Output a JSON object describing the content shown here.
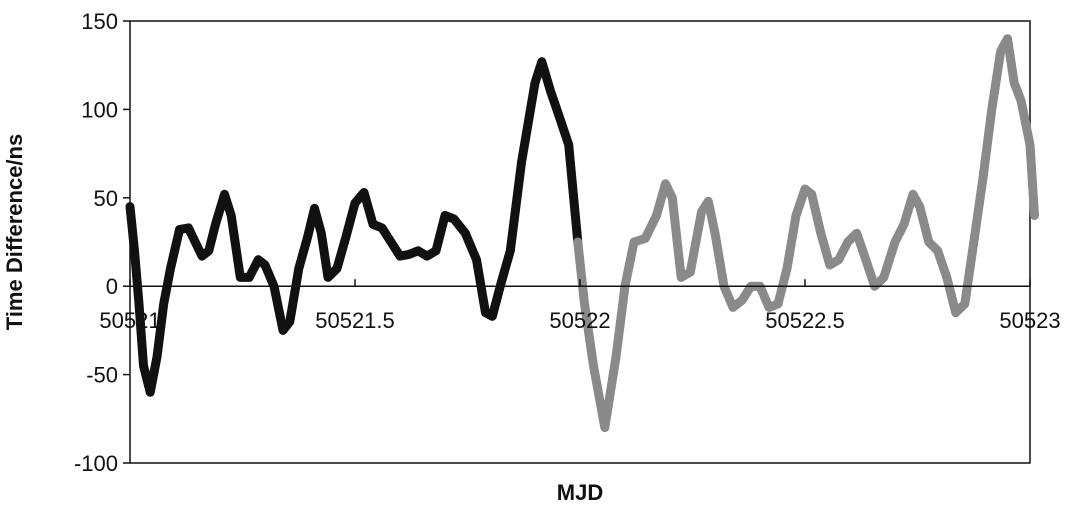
{
  "chart_data": {
    "type": "line",
    "xlabel": "MJD",
    "ylabel": "Time Difference/ns",
    "xlim": [
      50521,
      50523
    ],
    "ylim": [
      -100,
      150
    ],
    "x_ticks": [
      50521,
      50521.5,
      50522,
      50522.5,
      50523
    ],
    "x_tick_labels": [
      "50521",
      "50521.5",
      "50522",
      "50522.5",
      "50523"
    ],
    "y_ticks": [
      -100,
      -50,
      0,
      50,
      100,
      150
    ],
    "y_tick_labels": [
      "-100",
      "-50",
      "0",
      "50",
      "100",
      "150"
    ],
    "grid": false,
    "legend": false,
    "series": [
      {
        "color": "#111111",
        "points": [
          [
            50521.0,
            45
          ],
          [
            50521.01,
            20
          ],
          [
            50521.02,
            -10
          ],
          [
            50521.03,
            -45
          ],
          [
            50521.045,
            -60
          ],
          [
            50521.06,
            -40
          ],
          [
            50521.075,
            -10
          ],
          [
            50521.09,
            10
          ],
          [
            50521.11,
            32
          ],
          [
            50521.13,
            33
          ],
          [
            50521.145,
            25
          ],
          [
            50521.16,
            17
          ],
          [
            50521.175,
            20
          ],
          [
            50521.19,
            35
          ],
          [
            50521.21,
            52
          ],
          [
            50521.225,
            40
          ],
          [
            50521.245,
            5
          ],
          [
            50521.265,
            5
          ],
          [
            50521.285,
            15
          ],
          [
            50521.3,
            12
          ],
          [
            50521.32,
            0
          ],
          [
            50521.34,
            -25
          ],
          [
            50521.355,
            -20
          ],
          [
            50521.375,
            10
          ],
          [
            50521.395,
            28
          ],
          [
            50521.41,
            44
          ],
          [
            50521.425,
            30
          ],
          [
            50521.44,
            5
          ],
          [
            50521.46,
            10
          ],
          [
            50521.48,
            28
          ],
          [
            50521.5,
            47
          ],
          [
            50521.52,
            53
          ],
          [
            50521.54,
            35
          ],
          [
            50521.56,
            33
          ],
          [
            50521.58,
            25
          ],
          [
            50521.6,
            17
          ],
          [
            50521.62,
            18
          ],
          [
            50521.64,
            20
          ],
          [
            50521.66,
            17
          ],
          [
            50521.68,
            20
          ],
          [
            50521.7,
            40
          ],
          [
            50521.72,
            38
          ],
          [
            50521.745,
            30
          ],
          [
            50521.77,
            15
          ],
          [
            50521.79,
            -15
          ],
          [
            50521.805,
            -17
          ],
          [
            50521.825,
            2
          ],
          [
            50521.845,
            20
          ],
          [
            50521.87,
            70
          ],
          [
            50521.9,
            115
          ],
          [
            50521.915,
            127
          ],
          [
            50521.935,
            110
          ],
          [
            50521.955,
            95
          ],
          [
            50521.975,
            80
          ],
          [
            50521.995,
            25
          ]
        ]
      },
      {
        "color": "#8a8a8a",
        "points": [
          [
            50521.995,
            25
          ],
          [
            50522.01,
            -10
          ],
          [
            50522.03,
            -45
          ],
          [
            50522.055,
            -80
          ],
          [
            50522.08,
            -40
          ],
          [
            50522.1,
            0
          ],
          [
            50522.12,
            25
          ],
          [
            50522.145,
            27
          ],
          [
            50522.17,
            40
          ],
          [
            50522.19,
            58
          ],
          [
            50522.205,
            50
          ],
          [
            50522.225,
            5
          ],
          [
            50522.245,
            8
          ],
          [
            50522.27,
            42
          ],
          [
            50522.285,
            48
          ],
          [
            50522.3,
            30
          ],
          [
            50522.32,
            0
          ],
          [
            50522.34,
            -12
          ],
          [
            50522.36,
            -8
          ],
          [
            50522.38,
            0
          ],
          [
            50522.4,
            0
          ],
          [
            50522.42,
            -12
          ],
          [
            50522.44,
            -10
          ],
          [
            50522.46,
            10
          ],
          [
            50522.48,
            40
          ],
          [
            50522.5,
            55
          ],
          [
            50522.515,
            52
          ],
          [
            50522.535,
            30
          ],
          [
            50522.555,
            12
          ],
          [
            50522.575,
            15
          ],
          [
            50522.595,
            25
          ],
          [
            50522.615,
            30
          ],
          [
            50522.635,
            15
          ],
          [
            50522.655,
            0
          ],
          [
            50522.675,
            5
          ],
          [
            50522.7,
            25
          ],
          [
            50522.72,
            35
          ],
          [
            50522.74,
            52
          ],
          [
            50522.755,
            45
          ],
          [
            50522.775,
            25
          ],
          [
            50522.795,
            20
          ],
          [
            50522.815,
            5
          ],
          [
            50522.835,
            -15
          ],
          [
            50522.855,
            -10
          ],
          [
            50522.875,
            25
          ],
          [
            50522.895,
            60
          ],
          [
            50522.915,
            100
          ],
          [
            50522.935,
            133
          ],
          [
            50522.95,
            140
          ],
          [
            50522.965,
            115
          ],
          [
            50522.98,
            105
          ],
          [
            50523.0,
            80
          ],
          [
            50523.01,
            40
          ]
        ]
      }
    ]
  }
}
